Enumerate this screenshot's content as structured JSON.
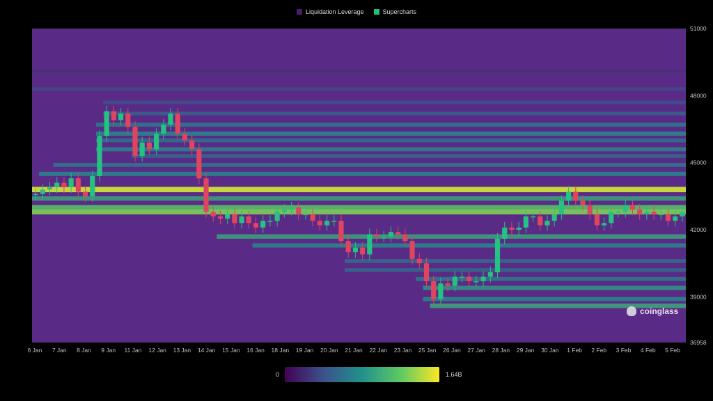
{
  "legend": [
    {
      "label": "Liquidation Leverage",
      "color": "#4a1c6b"
    },
    {
      "label": "Supercharts",
      "color": "#20c07a"
    }
  ],
  "watermark": "coinglass",
  "colorbar": {
    "min_label": "0",
    "max_label": "1.64B",
    "colors": [
      "#440154",
      "#3b528b",
      "#21918c",
      "#5ec962",
      "#fde725"
    ]
  },
  "chart_data": {
    "type": "heatmap",
    "title": "",
    "xlabel": "",
    "ylabel": "",
    "background_color": "#5a2a87",
    "ylim": [
      36958,
      51000
    ],
    "y_ticks": [
      "51000",
      "48000",
      "45000",
      "42000",
      "39000",
      "36958"
    ],
    "y_tick_values": [
      51000,
      48000,
      45000,
      42000,
      39000,
      36958
    ],
    "x_ticks": [
      "6 Jan",
      "7 Jan",
      "8 Jan",
      "9 Jan",
      "11 Jan",
      "12 Jan",
      "13 Jan",
      "14 Jan",
      "15 Jan",
      "16 Jan",
      "18 Jan",
      "19 Jan",
      "20 Jan",
      "21 Jan",
      "22 Jan",
      "23 Jan",
      "25 Jan",
      "26 Jan",
      "27 Jan",
      "28 Jan",
      "29 Jan",
      "30 Jan",
      "1 Feb",
      "2 Feb",
      "3 Feb",
      "4 Feb",
      "5 Feb"
    ],
    "price_series": {
      "name": "Supercharts",
      "values": [
        43600,
        43800,
        43900,
        44100,
        43900,
        44300,
        43700,
        43500,
        44400,
        46200,
        47300,
        46900,
        47200,
        46600,
        45300,
        45900,
        45600,
        46300,
        46700,
        47200,
        46300,
        46000,
        45600,
        44300,
        42800,
        42600,
        42500,
        42700,
        42300,
        42600,
        42300,
        42100,
        42400,
        42400,
        42800,
        42900,
        43000,
        42700,
        42700,
        42400,
        42200,
        42400,
        42400,
        41500,
        41000,
        41200,
        40900,
        41800,
        41700,
        41700,
        41900,
        41800,
        41500,
        40700,
        40500,
        39700,
        38900,
        39600,
        39500,
        39900,
        39900,
        39700,
        39700,
        39900,
        40100,
        41600,
        42100,
        42000,
        42100,
        42600,
        42600,
        42200,
        42400,
        42700,
        43300,
        43700,
        43300,
        43100,
        42700,
        42200,
        42300,
        42800,
        42800,
        43100,
        42900,
        42700,
        42800,
        42700,
        42700,
        42400,
        42600,
        42800
      ]
    },
    "liquidation_levels": [
      {
        "price": 49100,
        "intensity": 0.15
      },
      {
        "price": 48300,
        "intensity": 0.25
      },
      {
        "price": 47700,
        "intensity": 0.28
      },
      {
        "price": 47200,
        "intensity": 0.35
      },
      {
        "price": 46700,
        "intensity": 0.45
      },
      {
        "price": 46300,
        "intensity": 0.5
      },
      {
        "price": 46000,
        "intensity": 0.42
      },
      {
        "price": 45600,
        "intensity": 0.48
      },
      {
        "price": 45300,
        "intensity": 0.38
      },
      {
        "price": 44900,
        "intensity": 0.45
      },
      {
        "price": 44500,
        "intensity": 0.5
      },
      {
        "price": 43800,
        "intensity": 0.92
      },
      {
        "price": 43400,
        "intensity": 0.6
      },
      {
        "price": 43000,
        "intensity": 0.72
      },
      {
        "price": 42800,
        "intensity": 0.8
      },
      {
        "price": 41700,
        "intensity": 0.6
      },
      {
        "price": 41300,
        "intensity": 0.5
      },
      {
        "price": 40600,
        "intensity": 0.4
      },
      {
        "price": 40200,
        "intensity": 0.38
      },
      {
        "price": 39800,
        "intensity": 0.45
      },
      {
        "price": 39400,
        "intensity": 0.55
      },
      {
        "price": 38900,
        "intensity": 0.5
      },
      {
        "price": 38600,
        "intensity": 0.62
      }
    ]
  }
}
